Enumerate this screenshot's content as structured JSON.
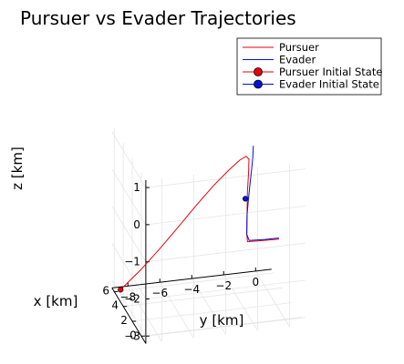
{
  "chart_data": {
    "type": "line3d",
    "title": "Pursuer vs Evader Trajectories",
    "xlabel": "x [km]",
    "ylabel": "y [km]",
    "zlabel": "z [km]",
    "xlim": [
      -1,
      6.5
    ],
    "ylim": [
      -9,
      1
    ],
    "zlim": [
      -3.2,
      1.2
    ],
    "x_ticks": [
      "0",
      "2",
      "4",
      "6"
    ],
    "x_tick_values": [
      0,
      2,
      4,
      6
    ],
    "y_ticks": [
      "−8",
      "−6",
      "−4",
      "−2",
      "0"
    ],
    "y_tick_values": [
      -8,
      -6,
      -4,
      -2,
      0
    ],
    "z_ticks": [
      "1",
      "0",
      "−1",
      "−2",
      "−3"
    ],
    "z_tick_values": [
      1,
      0,
      -1,
      -2,
      -3
    ],
    "grid": true,
    "legend_position": "top-right",
    "series": [
      {
        "name": "Pursuer",
        "color": "#e8000b",
        "points": [
          [
            6.0,
            -8.6,
            -3.17
          ],
          [
            4.8,
            -7.7,
            -2.45
          ],
          [
            3.7,
            -6.8,
            -1.7
          ],
          [
            2.7,
            -5.9,
            -0.95
          ],
          [
            1.9,
            -5.0,
            -0.25
          ],
          [
            1.3,
            -4.1,
            0.35
          ],
          [
            0.8,
            -3.3,
            0.82
          ],
          [
            0.5,
            -2.7,
            1.12
          ],
          [
            0.3,
            -2.35,
            1.25
          ],
          [
            0.2,
            -2.2,
            1.18
          ],
          [
            0.1,
            -2.25,
            0.85
          ],
          [
            0.0,
            -2.35,
            0.35
          ],
          [
            -0.1,
            -2.4,
            -0.3
          ],
          [
            -0.2,
            -2.45,
            -0.75
          ],
          [
            -0.2,
            -2.4,
            -0.95
          ],
          [
            -0.5,
            -1.5,
            -0.9
          ],
          [
            -0.8,
            -0.6,
            -0.85
          ]
        ]
      },
      {
        "name": "Evader",
        "color": "#0012d6",
        "points": [
          [
            -0.8,
            -0.6,
            -0.82
          ],
          [
            -0.5,
            -1.4,
            -0.88
          ],
          [
            -0.2,
            -2.3,
            -0.92
          ],
          [
            -0.2,
            -2.45,
            -0.75
          ],
          [
            -0.1,
            -2.4,
            -0.25
          ],
          [
            -0.05,
            -2.3,
            0.15
          ],
          [
            0.0,
            -2.2,
            0.5
          ],
          [
            0.0,
            -2.1,
            0.9
          ],
          [
            0.05,
            -2.0,
            1.25
          ],
          [
            0.1,
            -1.95,
            1.55
          ]
        ]
      }
    ],
    "markers": [
      {
        "name": "Pursuer Initial State",
        "color": "#e8000b",
        "point": [
          6.0,
          -8.6,
          -3.17
        ]
      },
      {
        "name": "Evader Initial State",
        "color": "#0012d6",
        "point": [
          0.1,
          -2.45,
          0.15
        ]
      }
    ]
  }
}
